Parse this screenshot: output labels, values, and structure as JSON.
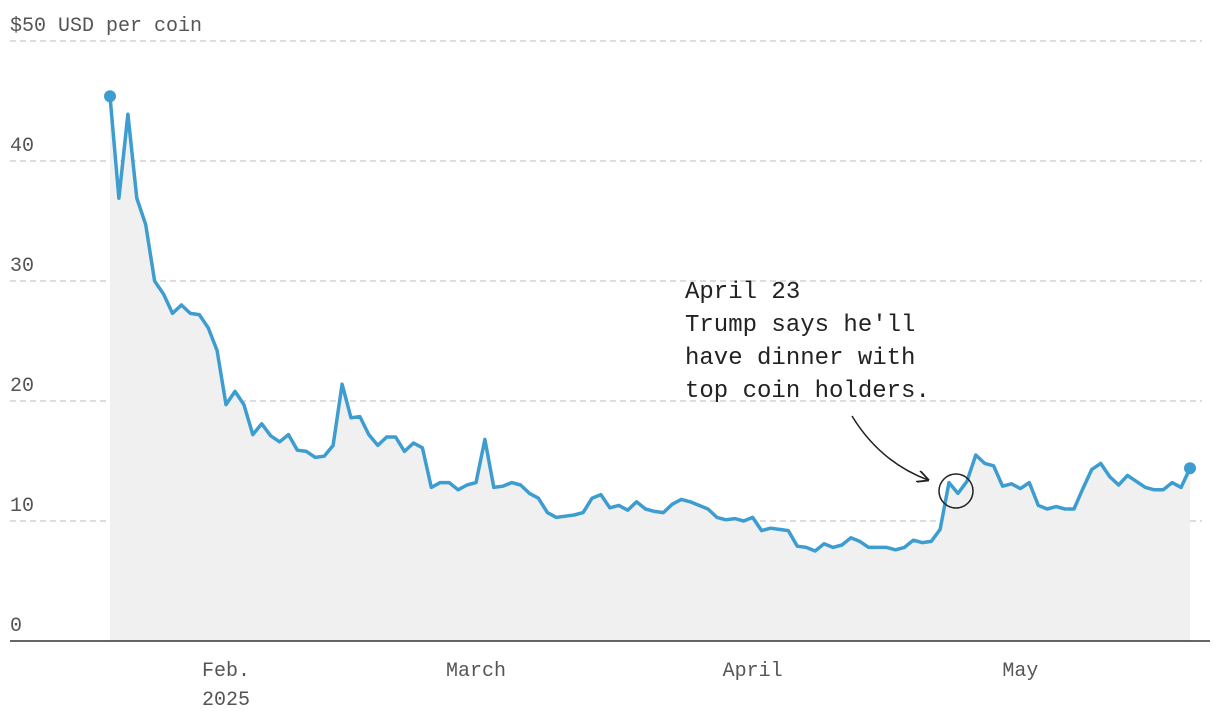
{
  "chart_data": {
    "type": "line",
    "x": [
      "2025-01-19",
      "2025-01-20",
      "2025-01-21",
      "2025-01-22",
      "2025-01-23",
      "2025-01-24",
      "2025-01-25",
      "2025-01-26",
      "2025-01-27",
      "2025-01-28",
      "2025-01-29",
      "2025-01-30",
      "2025-01-31",
      "2025-02-01",
      "2025-02-02",
      "2025-02-03",
      "2025-02-04",
      "2025-02-05",
      "2025-02-06",
      "2025-02-07",
      "2025-02-08",
      "2025-02-09",
      "2025-02-10",
      "2025-02-11",
      "2025-02-12",
      "2025-02-13",
      "2025-02-14",
      "2025-02-15",
      "2025-02-16",
      "2025-02-17",
      "2025-02-18",
      "2025-02-19",
      "2025-02-20",
      "2025-02-21",
      "2025-02-22",
      "2025-02-23",
      "2025-02-24",
      "2025-02-25",
      "2025-02-26",
      "2025-02-27",
      "2025-02-28",
      "2025-03-01",
      "2025-03-02",
      "2025-03-03",
      "2025-03-04",
      "2025-03-05",
      "2025-03-06",
      "2025-03-07",
      "2025-03-08",
      "2025-03-09",
      "2025-03-10",
      "2025-03-11",
      "2025-03-12",
      "2025-03-13",
      "2025-03-14",
      "2025-03-15",
      "2025-03-16",
      "2025-03-17",
      "2025-03-18",
      "2025-03-19",
      "2025-03-20",
      "2025-03-21",
      "2025-03-22",
      "2025-03-23",
      "2025-03-24",
      "2025-03-25",
      "2025-03-26",
      "2025-03-27",
      "2025-03-28",
      "2025-03-29",
      "2025-03-30",
      "2025-03-31",
      "2025-04-01",
      "2025-04-02",
      "2025-04-03",
      "2025-04-04",
      "2025-04-05",
      "2025-04-06",
      "2025-04-07",
      "2025-04-08",
      "2025-04-09",
      "2025-04-10",
      "2025-04-11",
      "2025-04-12",
      "2025-04-13",
      "2025-04-14",
      "2025-04-15",
      "2025-04-16",
      "2025-04-17",
      "2025-04-18",
      "2025-04-19",
      "2025-04-20",
      "2025-04-21",
      "2025-04-22",
      "2025-04-23",
      "2025-04-24",
      "2025-04-25",
      "2025-04-26",
      "2025-04-27",
      "2025-04-28",
      "2025-04-29",
      "2025-04-30",
      "2025-05-01",
      "2025-05-02",
      "2025-05-03",
      "2025-05-04",
      "2025-05-05",
      "2025-05-06",
      "2025-05-07",
      "2025-05-08",
      "2025-05-09",
      "2025-05-10",
      "2025-05-11",
      "2025-05-12",
      "2025-05-13",
      "2025-05-14",
      "2025-05-15",
      "2025-05-16",
      "2025-05-17",
      "2025-05-18",
      "2025-05-19",
      "2025-05-20"
    ],
    "values": [
      45.4,
      36.9,
      43.9,
      36.9,
      34.7,
      30.0,
      28.9,
      27.3,
      28.0,
      27.3,
      27.2,
      26.1,
      24.2,
      19.7,
      20.8,
      19.7,
      17.2,
      18.1,
      17.1,
      16.6,
      17.2,
      15.9,
      15.8,
      15.3,
      15.4,
      16.3,
      21.4,
      18.6,
      18.7,
      17.2,
      16.3,
      17.0,
      17.0,
      15.8,
      16.5,
      16.1,
      12.8,
      13.2,
      13.2,
      12.6,
      13.0,
      13.2,
      16.8,
      12.8,
      12.9,
      13.2,
      13.0,
      12.3,
      11.9,
      10.7,
      10.3,
      10.4,
      10.5,
      10.7,
      11.9,
      12.2,
      11.1,
      11.3,
      10.9,
      11.6,
      11.0,
      10.8,
      10.7,
      11.4,
      11.8,
      11.6,
      11.3,
      11.0,
      10.3,
      10.1,
      10.2,
      10.0,
      10.3,
      9.2,
      9.4,
      9.3,
      9.2,
      7.9,
      7.8,
      7.5,
      8.1,
      7.8,
      8.0,
      8.6,
      8.3,
      7.8,
      7.8,
      7.8,
      7.6,
      7.8,
      8.4,
      8.2,
      8.3,
      9.3,
      13.2,
      12.3,
      13.3,
      15.5,
      14.8,
      14.6,
      12.9,
      13.1,
      12.7,
      13.2,
      11.3,
      11.0,
      11.2,
      11.0,
      11.0,
      12.7,
      14.3,
      14.8,
      13.7,
      13.0,
      13.8,
      13.3,
      12.8,
      12.6,
      12.6,
      13.2,
      12.8,
      14.4
    ],
    "color": "#3d9dd1",
    "area_color": "#f0f0f0",
    "ylim": [
      0,
      50
    ],
    "yticks": [
      0,
      10,
      20,
      30,
      40,
      {
        "value": 50,
        "label": "$50 USD per coin"
      }
    ],
    "xticks": [
      {
        "value": "2025-02-01",
        "label": "Feb."
      },
      {
        "value": "2025-03-01",
        "label": "March"
      },
      {
        "value": "2025-04-01",
        "label": "April"
      },
      {
        "value": "2025-05-01",
        "label": "May"
      }
    ],
    "xtick_year": "2025",
    "grid": true,
    "annotation": [
      "April 23",
      "Trump says he'll",
      "have dinner with",
      "top coin holders."
    ]
  }
}
